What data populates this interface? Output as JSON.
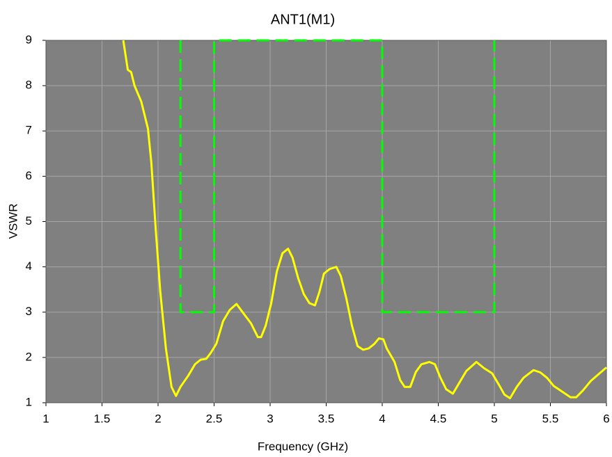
{
  "chart_data": {
    "type": "line",
    "title": "ANT1(M1)",
    "xlabel": "Frequency (GHz)",
    "ylabel": "VSWR",
    "xlim": [
      1,
      6
    ],
    "ylim": [
      1,
      9
    ],
    "xticks": [
      1,
      1.5,
      2,
      2.5,
      3,
      3.5,
      4,
      4.5,
      5,
      5.5,
      6
    ],
    "yticks": [
      1,
      2,
      3,
      4,
      5,
      6,
      7,
      8,
      9
    ],
    "grid": true,
    "background": "#808080",
    "series": [
      {
        "color": "#ffff00",
        "dash": false,
        "x": [
          1.69,
          1.73,
          1.76,
          1.79,
          1.85,
          1.91,
          1.94,
          1.98,
          2.02,
          2.07,
          2.12,
          2.16,
          2.2,
          2.27,
          2.33,
          2.38,
          2.43,
          2.47,
          2.52,
          2.58,
          2.64,
          2.7,
          2.76,
          2.83,
          2.89,
          2.92,
          2.96,
          3.01,
          3.06,
          3.11,
          3.16,
          3.2,
          3.25,
          3.3,
          3.35,
          3.4,
          3.44,
          3.48,
          3.53,
          3.59,
          3.63,
          3.68,
          3.73,
          3.78,
          3.83,
          3.88,
          3.93,
          3.97,
          4.01,
          4.04,
          4.11,
          4.16,
          4.2,
          4.25,
          4.3,
          4.35,
          4.42,
          4.47,
          4.52,
          4.57,
          4.63,
          4.69,
          4.75,
          4.84,
          4.91,
          4.98,
          5.04,
          5.09,
          5.14,
          5.2,
          5.26,
          5.35,
          5.41,
          5.47,
          5.53,
          5.62,
          5.68,
          5.73,
          5.79,
          5.86,
          5.93,
          6.0
        ],
        "values": [
          9,
          8.35,
          8.3,
          8.0,
          7.65,
          7.05,
          6.3,
          4.8,
          3.45,
          2.2,
          1.35,
          1.15,
          1.35,
          1.6,
          1.85,
          1.95,
          1.97,
          2.1,
          2.3,
          2.8,
          3.05,
          3.18,
          2.98,
          2.75,
          2.45,
          2.45,
          2.7,
          3.2,
          3.9,
          4.3,
          4.4,
          4.2,
          3.75,
          3.4,
          3.2,
          3.15,
          3.45,
          3.85,
          3.95,
          4.0,
          3.8,
          3.3,
          2.7,
          2.25,
          2.17,
          2.2,
          2.3,
          2.42,
          2.4,
          2.2,
          1.9,
          1.5,
          1.35,
          1.35,
          1.68,
          1.85,
          1.9,
          1.85,
          1.55,
          1.3,
          1.2,
          1.45,
          1.7,
          1.9,
          1.76,
          1.65,
          1.4,
          1.18,
          1.1,
          1.35,
          1.55,
          1.72,
          1.67,
          1.55,
          1.37,
          1.22,
          1.12,
          1.12,
          1.27,
          1.48,
          1.63,
          1.78
        ]
      },
      {
        "color": "#00ff00",
        "dash": true,
        "x": [
          2.2,
          2.2,
          2.5,
          2.5,
          4,
          4,
          5,
          5
        ],
        "values": [
          9,
          3,
          3,
          9,
          9,
          3,
          3,
          9
        ]
      }
    ]
  }
}
